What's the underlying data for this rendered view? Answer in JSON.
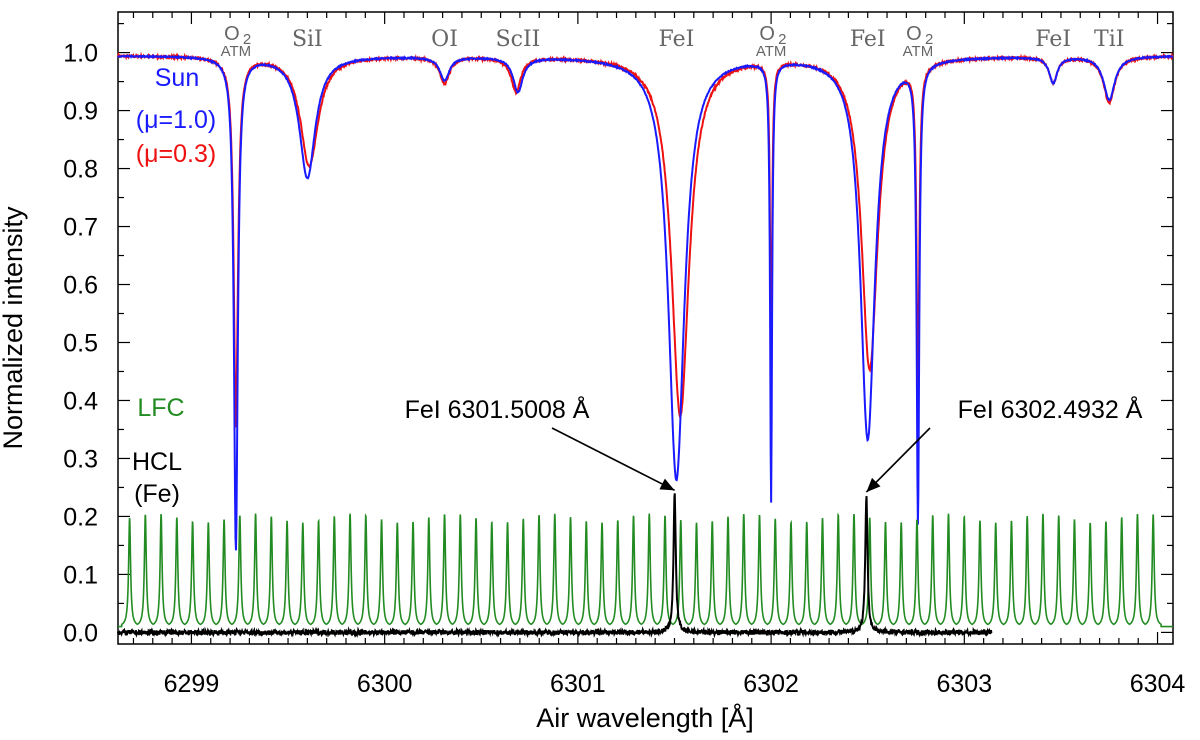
{
  "chart_data": {
    "type": "line",
    "xlabel": "Air wavelength [Å]",
    "ylabel": "Normalized intensity",
    "xlim": [
      6298.62,
      6304.08
    ],
    "ylim": [
      -0.02,
      1.07
    ],
    "xticks": [
      6299,
      6300,
      6301,
      6302,
      6303,
      6304
    ],
    "yticks": [
      0.0,
      0.1,
      0.2,
      0.3,
      0.4,
      0.5,
      0.6,
      0.7,
      0.8,
      0.9,
      1.0
    ],
    "ytick_labels": [
      "0.0",
      "0.1",
      "0.2",
      "0.3",
      "0.4",
      "0.5",
      "0.6",
      "0.7",
      "0.8",
      "0.9",
      "1.0"
    ],
    "colors": {
      "sun_mu10": "#1a1aff",
      "sun_mu03": "#ee1111",
      "lfc": "#228b22",
      "hcl": "#000000",
      "label_gray": "#666666"
    },
    "legend": {
      "sun": "Sun",
      "mu10": "(μ=1.0)",
      "mu03": "(μ=0.3)",
      "lfc": "LFC",
      "hcl": "HCL",
      "hcl_sub": "(Fe)"
    },
    "series": [
      {
        "name": "Sun (μ=1.0)",
        "continuum": 0.995,
        "lines": [
          {
            "center": 6299.23,
            "depth": 0.85,
            "width": 0.012
          },
          {
            "center": 6299.6,
            "depth": 0.21,
            "width": 0.05
          },
          {
            "center": 6300.31,
            "depth": 0.04,
            "width": 0.03
          },
          {
            "center": 6300.69,
            "depth": 0.06,
            "width": 0.03
          },
          {
            "center": 6301.51,
            "depth": 0.73,
            "width": 0.05
          },
          {
            "center": 6302.0,
            "depth": 0.76,
            "width": 0.006
          },
          {
            "center": 6302.5,
            "depth": 0.66,
            "width": 0.045
          },
          {
            "center": 6302.76,
            "depth": 0.79,
            "width": 0.008
          },
          {
            "center": 6303.46,
            "depth": 0.045,
            "width": 0.025
          },
          {
            "center": 6303.75,
            "depth": 0.075,
            "width": 0.035
          }
        ]
      },
      {
        "name": "Sun (μ=0.3)",
        "continuum": 0.995,
        "lines": [
          {
            "center": 6299.23,
            "depth": 0.64,
            "width": 0.013
          },
          {
            "center": 6299.61,
            "depth": 0.19,
            "width": 0.055
          },
          {
            "center": 6300.31,
            "depth": 0.045,
            "width": 0.03
          },
          {
            "center": 6300.68,
            "depth": 0.06,
            "width": 0.03
          },
          {
            "center": 6301.53,
            "depth": 0.62,
            "width": 0.055
          },
          {
            "center": 6302.0,
            "depth": 0.54,
            "width": 0.006
          },
          {
            "center": 6302.51,
            "depth": 0.54,
            "width": 0.05
          },
          {
            "center": 6302.76,
            "depth": 0.58,
            "width": 0.008
          },
          {
            "center": 6303.46,
            "depth": 0.045,
            "width": 0.025
          },
          {
            "center": 6303.75,
            "depth": 0.08,
            "width": 0.035
          }
        ]
      },
      {
        "name": "LFC",
        "baseline": 0.01,
        "x_start": 6298.68,
        "x_end": 6303.98,
        "spacing": 0.0815,
        "peak": 0.195,
        "width": 0.006
      },
      {
        "name": "HCL (Fe)",
        "baseline": 0.0,
        "x_start": 6298.62,
        "x_end": 6303.14,
        "peaks": [
          {
            "center": 6301.5008,
            "height": 0.24,
            "width": 0.007
          },
          {
            "center": 6302.4932,
            "height": 0.235,
            "width": 0.007
          }
        ]
      }
    ],
    "line_labels": [
      {
        "text": "O",
        "sub": "2",
        "atm": "ATM",
        "x": 6299.23
      },
      {
        "text": "SiI",
        "x": 6299.6
      },
      {
        "text": "OI",
        "x": 6300.31
      },
      {
        "text": "ScII",
        "x": 6300.69
      },
      {
        "text": "FeI",
        "x": 6301.51
      },
      {
        "text": "O",
        "sub": "2",
        "atm": "ATM",
        "x": 6302.0
      },
      {
        "text": "FeI",
        "x": 6302.5
      },
      {
        "text": "O",
        "sub": "2",
        "atm": "ATM",
        "x": 6302.76
      },
      {
        "text": "FeI",
        "x": 6303.46
      },
      {
        "text": "TiI",
        "x": 6303.75
      }
    ],
    "annotations": [
      {
        "text": "FeI 6301.5008 Å",
        "target_x": 6301.5008,
        "target_y": 0.245
      },
      {
        "text": "FeI 6302.4932 Å",
        "target_x": 6302.4932,
        "target_y": 0.242
      }
    ]
  }
}
